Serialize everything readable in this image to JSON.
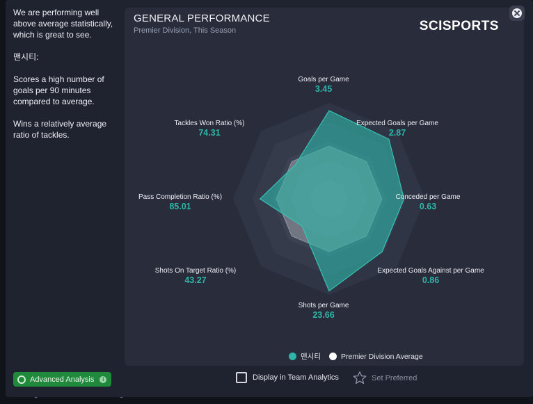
{
  "backdrop": {
    "bottom_text": "...o stronger momentum when looking at the match overall."
  },
  "sidebar": {
    "paragraphs": [
      "We are performing well above average statistically, which is great to see.",
      "맨시티:",
      "Scores a high number of goals per 90 minutes compared to average.",
      "Wins a relatively average ratio of tackles."
    ]
  },
  "panel": {
    "title": "GENERAL PERFORMANCE",
    "subtitle": "Premier Division, This Season",
    "logo_text": "SCISPORTS"
  },
  "chart_data": {
    "type": "radar",
    "title": "GENERAL PERFORMANCE",
    "subtitle": "Premier Division, This Season",
    "axes": [
      {
        "name": "Goals per Game",
        "value_label": "3.45"
      },
      {
        "name": "Expected Goals per Game",
        "value_label": "2.87"
      },
      {
        "name": "Conceded per Game",
        "value_label": "0.63"
      },
      {
        "name": "Expected Goals Against per Game",
        "value_label": "0.86"
      },
      {
        "name": "Shots per Game",
        "value_label": "23.66"
      },
      {
        "name": "Shots On Target Ratio (%)",
        "value_label": "43.27"
      },
      {
        "name": "Pass Completion Ratio (%)",
        "value_label": "85.01"
      },
      {
        "name": "Tackles Won Ratio (%)",
        "value_label": "74.31"
      }
    ],
    "series": [
      {
        "name": "맨시티",
        "relative_values": [
          0.92,
          0.88,
          0.78,
          0.78,
          0.96,
          0.4,
          0.72,
          0.5
        ]
      },
      {
        "name": "Premier Division Average",
        "relative_values": [
          0.55,
          0.55,
          0.55,
          0.55,
          0.55,
          0.55,
          0.55,
          0.55
        ]
      }
    ],
    "rings": 5,
    "legend_position": "bottom",
    "colors": {
      "team": "#2fb5a8",
      "average": "#ffffff"
    }
  },
  "legend": {
    "team_label": "맨시티",
    "average_label": "Premier Division Average"
  },
  "footer": {
    "display_label": "Display in Team Analytics",
    "preferred_label": "Set Preferred",
    "advanced_label": "Advanced Analysis"
  },
  "icons": {
    "close": "close-icon",
    "star": "star-icon",
    "info": "info-icon"
  }
}
